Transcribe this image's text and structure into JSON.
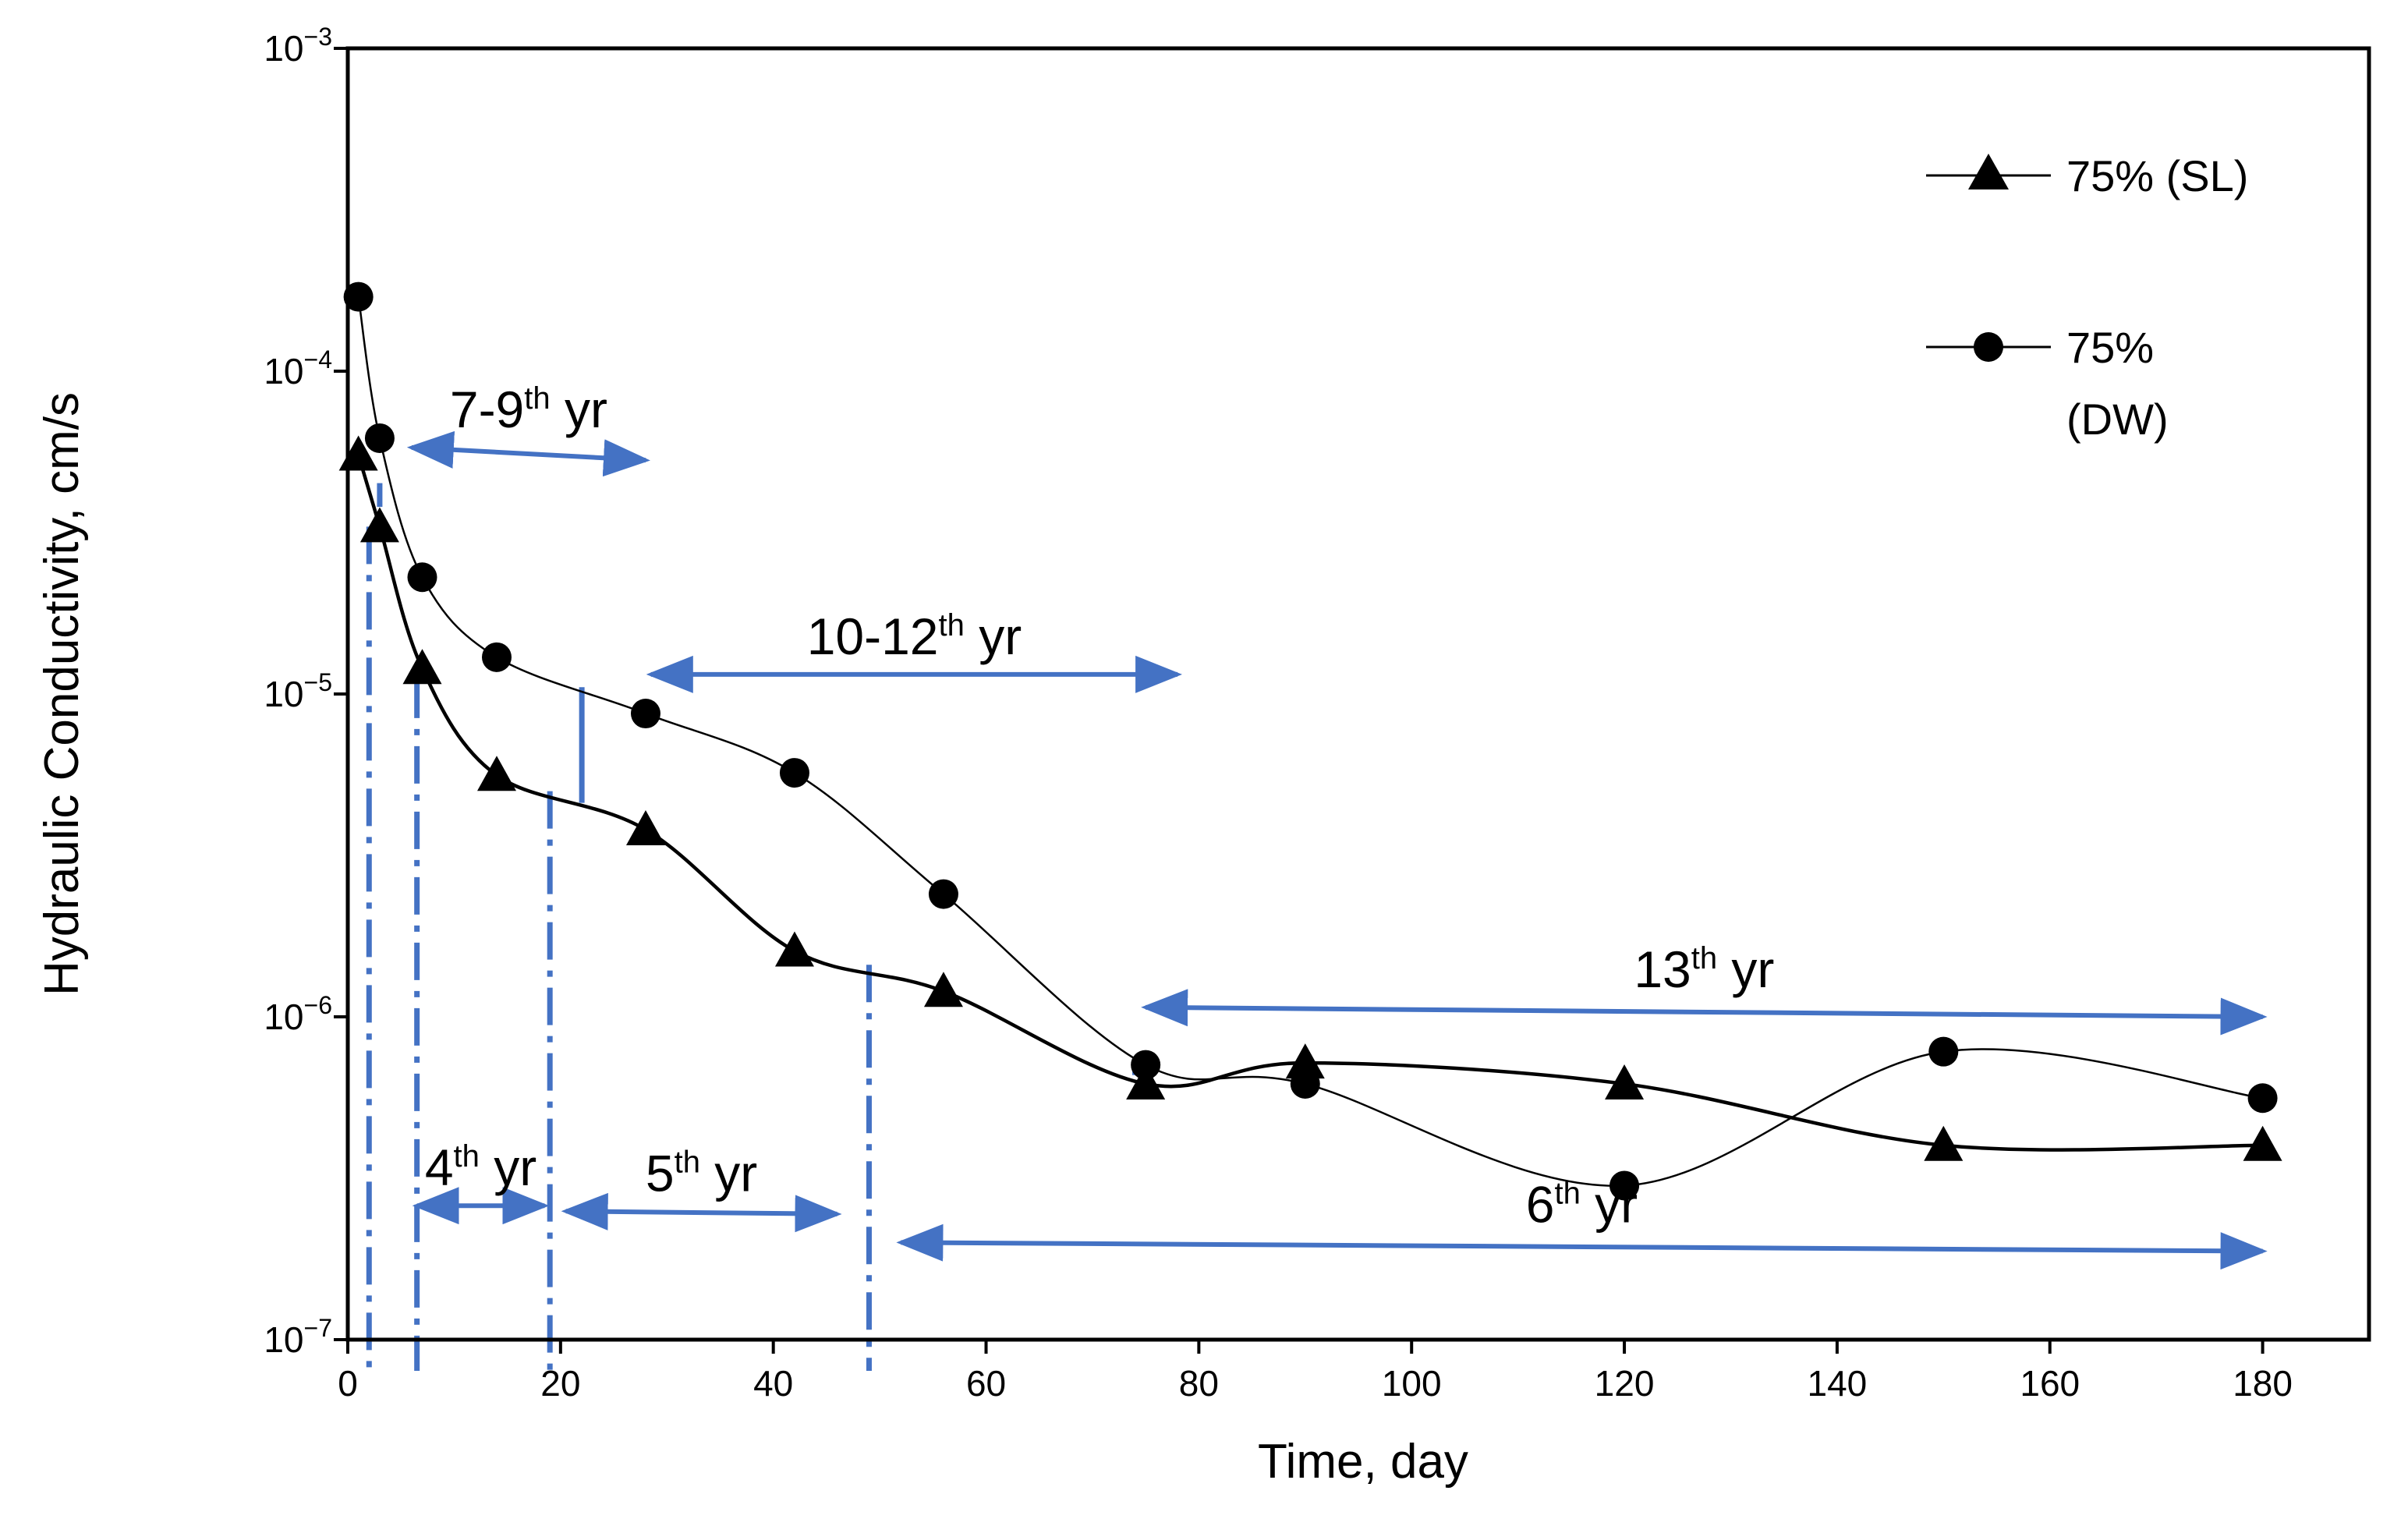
{
  "chart_data": {
    "type": "line",
    "xlabel": "Time, day",
    "ylabel": "Hydraulic Conductivity, cm/s",
    "yscale": "log",
    "xlim": [
      0,
      190
    ],
    "ylim": [
      1e-07,
      0.001
    ],
    "x_ticks": [
      0,
      20,
      40,
      60,
      80,
      100,
      120,
      140,
      160,
      180
    ],
    "y_ticks": [
      {
        "value": 0.001,
        "base": "10",
        "exp": "−3"
      },
      {
        "value": 0.0001,
        "base": "10",
        "exp": "−4"
      },
      {
        "value": 1e-05,
        "base": "10",
        "exp": "−5"
      },
      {
        "value": 1e-06,
        "base": "10",
        "exp": "−6"
      },
      {
        "value": 1e-07,
        "base": "10",
        "exp": "−7"
      }
    ],
    "grid": false,
    "legend_position": "top-right",
    "series": [
      {
        "name": "75% (SL)",
        "marker": "triangle",
        "color": "#000000",
        "x": [
          1,
          3,
          7,
          14,
          28,
          42,
          56,
          75,
          90,
          120,
          150,
          180
        ],
        "y": [
          5.5e-05,
          3.3e-05,
          1.2e-05,
          5.6e-06,
          3.8e-06,
          1.6e-06,
          1.2e-06,
          6.2e-07,
          7.2e-07,
          6.2e-07,
          4e-07,
          4e-07
        ]
      },
      {
        "name": "75%",
        "name_line2": "(DW)",
        "marker": "circle",
        "color": "#000000",
        "x": [
          1,
          3,
          7,
          14,
          28,
          42,
          56,
          75,
          90,
          120,
          150,
          180
        ],
        "y": [
          0.00017,
          6.2e-05,
          2.3e-05,
          1.3e-05,
          8.7e-06,
          5.7e-06,
          2.4e-06,
          7.1e-07,
          6.2e-07,
          3e-07,
          7.8e-07,
          5.6e-07
        ]
      }
    ],
    "annotations": [
      {
        "base": "7-9",
        "sup": "th",
        "tail": " yr",
        "x_start": 6,
        "x_end": 28,
        "y": 5.8e-05,
        "y_end": 5.3e-05
      },
      {
        "base": "10-12",
        "sup": "th",
        "tail": " yr",
        "x_start": 28.5,
        "x_end": 78,
        "y": 1.15e-05
      },
      {
        "base": "13",
        "sup": "th",
        "tail": " yr",
        "x_start": 75,
        "x_end": 180,
        "y": 1.07e-06,
        "y_end": 1e-06
      },
      {
        "base": "4",
        "sup": "th",
        "tail": " yr",
        "x_start": 6.5,
        "x_end": 18.5,
        "y": 2.6e-07
      },
      {
        "base": "5",
        "sup": "th",
        "tail": " yr",
        "x_start": 20.5,
        "x_end": 46,
        "y": 2.5e-07,
        "y_end": 2.45e-07
      },
      {
        "base": "6",
        "sup": "th",
        "tail": " yr",
        "x_start": 52,
        "x_end": 180,
        "y": 2e-07,
        "y_end": 1.88e-07
      }
    ],
    "dividers": [
      {
        "x": 2,
        "y_top": 3.3e-05,
        "style": "dashdot"
      },
      {
        "x": 3,
        "y_top": 4.5e-05,
        "y_bottom": 3.8e-05,
        "style": "solid"
      },
      {
        "x": 6.5,
        "y_top": 1.1e-05,
        "style": "dashdot"
      },
      {
        "x": 19,
        "y_top": 5e-06,
        "style": "dashdot"
      },
      {
        "x": 22,
        "y_top": 1.05e-05,
        "y_bottom": 4.6e-06,
        "style": "solid"
      },
      {
        "x": 49,
        "y_top": 1.45e-06,
        "style": "dashdot"
      },
      {
        "x": 74,
        "y_top": 7.4e-07,
        "y_bottom": 6.6e-07,
        "style": "solid"
      }
    ],
    "annotation_color": "#4472C4"
  }
}
